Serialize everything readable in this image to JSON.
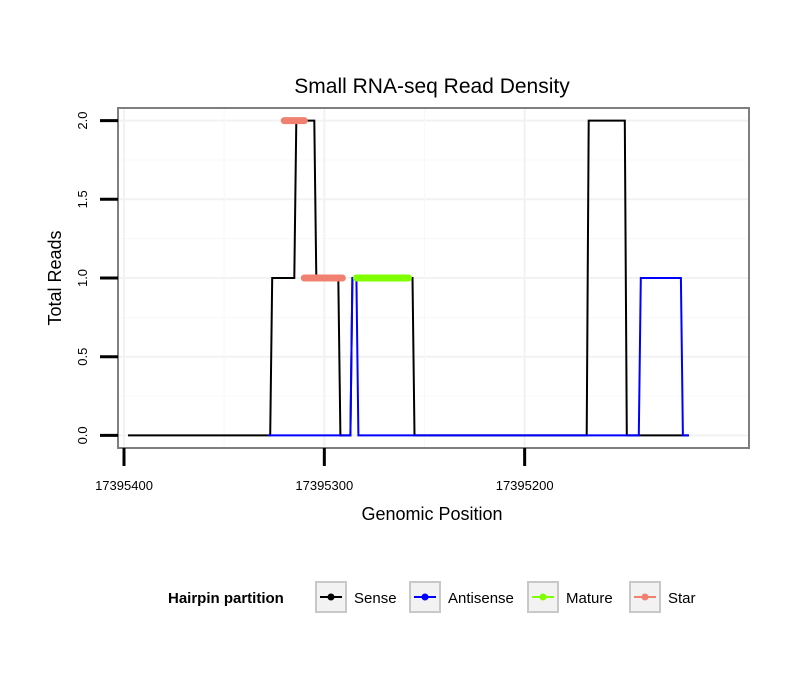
{
  "chart_data": {
    "type": "line",
    "title": "Small RNA-seq Read Density",
    "xlabel": "Genomic Position",
    "ylabel": "Total Reads",
    "x_reversed": true,
    "xlim": [
      17395403,
      17395088
    ],
    "ylim": [
      -0.08,
      2.08
    ],
    "x_ticks": [
      17395400,
      17395300,
      17395200
    ],
    "x_tick_labels": [
      "17395400",
      "17395300",
      "17395200"
    ],
    "y_ticks": [
      0.0,
      0.5,
      1.0,
      1.5,
      2.0
    ],
    "y_tick_labels": [
      "0.0",
      "0.5",
      "1.0",
      "1.5",
      "2.0"
    ],
    "grid": true,
    "legend": {
      "title": "Hairpin partition",
      "position": "bottom",
      "entries": [
        {
          "name": "Sense",
          "color": "#000000"
        },
        {
          "name": "Antisense",
          "color": "#0000ff"
        },
        {
          "name": "Mature",
          "color": "#7fff00"
        },
        {
          "name": "Star",
          "color": "#f08070"
        }
      ]
    },
    "series": [
      {
        "name": "Sense",
        "color": "#000000",
        "x": [
          17395398,
          17395327,
          17395326,
          17395315,
          17395314,
          17395305,
          17395304,
          17395293,
          17395292,
          17395287,
          17395286,
          17395256,
          17395255,
          17395236,
          17395235,
          17395215,
          17395214,
          17395169,
          17395168,
          17395150,
          17395149,
          17395134,
          17395133,
          17395118
        ],
        "y": [
          0,
          0,
          1,
          1,
          2,
          2,
          1,
          1,
          0,
          0,
          1,
          1,
          0,
          0,
          0,
          0,
          0,
          0,
          2,
          2,
          0,
          0,
          0,
          0
        ]
      },
      {
        "name": "Antisense",
        "color": "#0000ff",
        "x": [
          17395328,
          17395287,
          17395286,
          17395284,
          17395283,
          17395236,
          17395235,
          17395143,
          17395142,
          17395122,
          17395121,
          17395118
        ],
        "y": [
          0,
          0,
          1,
          1,
          0,
          0,
          0,
          0,
          1,
          1,
          0,
          0
        ]
      }
    ],
    "segments": [
      {
        "name": "Star",
        "color": "#f08070",
        "x": [
          17395320,
          17395310
        ],
        "y": 2
      },
      {
        "name": "Star",
        "color": "#f08070",
        "x": [
          17395310,
          17395291
        ],
        "y": 1
      },
      {
        "name": "Mature",
        "color": "#7fff00",
        "x": [
          17395284,
          17395258
        ],
        "y": 1
      }
    ]
  }
}
